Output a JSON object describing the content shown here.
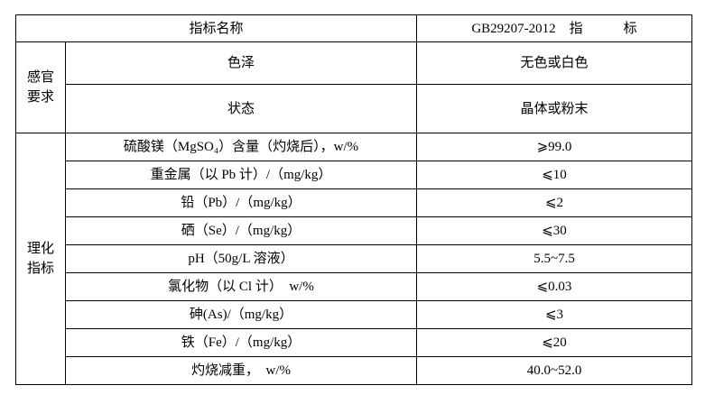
{
  "header": {
    "name_col": "指标名称",
    "standard_col": "GB29207-2012　指　　　标"
  },
  "sensory": {
    "group_line1": "感官",
    "group_line2": "要求",
    "rows": [
      {
        "name": "色泽",
        "value": "无色或白色"
      },
      {
        "name": "状态",
        "value": "晶体或粉末"
      }
    ]
  },
  "physchem": {
    "group_line1": "理化",
    "group_line2": "指标",
    "rows": [
      {
        "name": "硫酸镁（MgSO₄）含量（灼烧后），w/%",
        "value": "⩾99.0"
      },
      {
        "name": "重金属（以 Pb 计）/（mg/kg）",
        "value": "⩽10"
      },
      {
        "name": "铅（Pb）/（mg/kg）",
        "value": "⩽2"
      },
      {
        "name": "硒（Se）/（mg/kg）",
        "value": "⩽30"
      },
      {
        "name": "pH（50g/L 溶液）",
        "value": "5.5~7.5"
      },
      {
        "name": "氯化物（以 Cl 计）　w/%",
        "value": "⩽0.03"
      },
      {
        "name": "砷(As)/（mg/kg）",
        "value": "⩽3"
      },
      {
        "name": "铁（Fe）/（mg/kg）",
        "value": "⩽20"
      },
      {
        "name": "灼烧减重，　w/%",
        "value": "40.0~52.0"
      }
    ]
  }
}
